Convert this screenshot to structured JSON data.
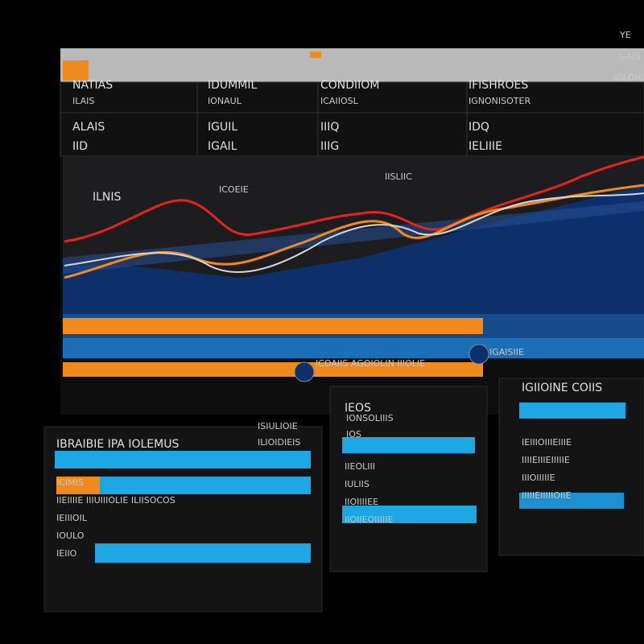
{
  "header": {
    "menu": [
      "YE",
      "ILAIS",
      "IOLOHIS"
    ]
  },
  "table": {
    "headers": [
      "NATIAS",
      "IDUMMIL",
      "CONDIIOM",
      "IFISHROES"
    ],
    "subheaders": [
      "ILAIS",
      "IONAUL",
      "ICAIIOSL",
      "IGNONISOTER"
    ],
    "rows": [
      [
        "ALAIS",
        "IGUIL",
        "IIIQ",
        "IDQ"
      ],
      [
        "IID",
        "IGAIL",
        "IIIG",
        "IELIIIE"
      ]
    ]
  },
  "chart": {
    "title": "ILNIS",
    "label": "ICOEIE",
    "tag": "IISLIIC"
  },
  "legend": {
    "left": "ICOAIIS AGOIOLIN IIIOLIE",
    "right": "IGAISIIE"
  },
  "panels": [
    {
      "title": "IBRAIBIE IPA IOLEMUS",
      "heading": "ISIULIOIE",
      "sub": "ILIOIDIEIS",
      "lines": [
        "ICIMIS",
        "IIEIIIIE IIIUIIIOLIE ILIISOCOS",
        "IEIIIOIL",
        "IOULO",
        "IEIIO"
      ]
    },
    {
      "title": "IEOS",
      "heading": "IONSOLIIIS",
      "sub": "IOS",
      "lines": [
        "IIEOLIII",
        "IULIIS",
        "IIOIIIIEE",
        "IIOIIEOIIIIIE"
      ]
    },
    {
      "title": "IGIIOINE COIIS",
      "heading": "",
      "sub": "",
      "lines": [
        "IEIIIOIIIEIIIE",
        "IIIIEIIIEIIIIIE",
        "IIIOIIIIIE",
        "IIIIIEIIIIIOIIE"
      ]
    }
  ]
}
